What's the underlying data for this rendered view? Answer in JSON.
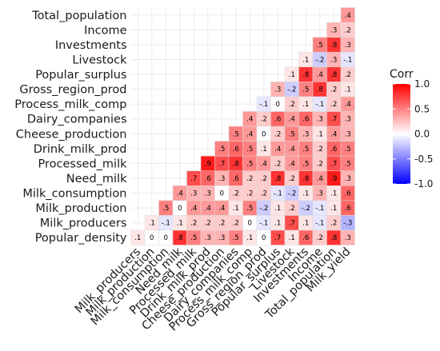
{
  "chart_data": {
    "type": "heatmap",
    "title": "",
    "xlabel": "",
    "ylabel": "",
    "x_variables": [
      "Milk_producers",
      "Milk_production",
      "Milk_consumption",
      "Need_milk",
      "Processed_milk",
      "Drink_milk_prod",
      "Cheese_production",
      "Dairy_companies",
      "Process_milk_comp",
      "Gross_region_prod",
      "Popular_surplus",
      "Livestock",
      "Investments",
      "Income",
      "Total_population",
      "Milk_yield"
    ],
    "y_variables": [
      "Popular_density",
      "Milk_producers",
      "Milk_production",
      "Milk_consumption",
      "Need_milk",
      "Processed_milk",
      "Drink_milk_prod",
      "Cheese_production",
      "Dairy_companies",
      "Process_milk_comp",
      "Gross_region_prod",
      "Popular_surplus",
      "Livestock",
      "Investments",
      "Income",
      "Total_population"
    ],
    "y_labels_display": [
      "Popular_density",
      "Milk_producers",
      "Milk_production",
      "Milk_consumption",
      "Need_milk",
      "Processed_milk",
      "Drink_milk_prod",
      "Cheese_production",
      "Dairy_companies",
      "Process_milk_comp",
      "Gross_region_prod",
      "Popular_surplus",
      "Livestock",
      "Investments",
      "Income",
      "Total_population"
    ],
    "x_labels_display": [
      "Milk_producers",
      "Milk_production",
      "Milk_consumption",
      "Need_milk",
      "Processed_milk",
      "Drink_milk_prod",
      "Cheese_production",
      "Dairy_companies",
      "Process_milk_comp",
      "Gross_region_prod",
      "Popular_surplus",
      "Livestock",
      "Investments",
      "Income",
      "Total_population",
      "Milk_yield"
    ],
    "rows": [
      [
        0.1,
        0,
        0,
        0.8,
        0.5,
        0.3,
        0.3,
        0.5,
        0.1,
        0,
        0.7,
        0.1,
        0.6,
        0.2,
        0.8,
        0.3
      ],
      [
        null,
        0.1,
        -0.1,
        0.1,
        0.2,
        0.2,
        0.2,
        0.2,
        0,
        -0.1,
        0.1,
        0.7,
        0.1,
        -0.1,
        0.2,
        -0.3
      ],
      [
        null,
        null,
        0.5,
        0,
        0.4,
        0.4,
        0.4,
        0.1,
        0.5,
        -0.2,
        0.1,
        0.2,
        -0.2,
        -0.1,
        0.1,
        0.6
      ],
      [
        null,
        null,
        null,
        0.4,
        0.3,
        0.3,
        0,
        0.2,
        0.2,
        0.2,
        -0.1,
        -0.2,
        0.1,
        0.3,
        0.1,
        0.6
      ],
      [
        null,
        null,
        null,
        null,
        0.7,
        0.6,
        0.3,
        0.6,
        0.2,
        0.2,
        0.8,
        0.2,
        0.8,
        0.4,
        0.9,
        0.3
      ],
      [
        null,
        null,
        null,
        null,
        null,
        0.9,
        0.7,
        0.8,
        0.5,
        0.4,
        0.2,
        0.4,
        0.5,
        0.2,
        0.7,
        0.5
      ],
      [
        null,
        null,
        null,
        null,
        null,
        null,
        0.5,
        0.6,
        0.5,
        0.1,
        0.4,
        0.4,
        0.5,
        0.2,
        0.6,
        0.5
      ],
      [
        null,
        null,
        null,
        null,
        null,
        null,
        null,
        0.5,
        0.4,
        0,
        0.2,
        0.5,
        0.3,
        0.1,
        0.4,
        0.3
      ],
      [
        null,
        null,
        null,
        null,
        null,
        null,
        null,
        null,
        0.4,
        0.2,
        0.6,
        0.4,
        0.6,
        0.3,
        0.7,
        0.3
      ],
      [
        null,
        null,
        null,
        null,
        null,
        null,
        null,
        null,
        null,
        -0.1,
        0,
        0.2,
        0.1,
        -0.1,
        0.2,
        0.4
      ],
      [
        null,
        null,
        null,
        null,
        null,
        null,
        null,
        null,
        null,
        null,
        0.3,
        -0.2,
        0.5,
        0.8,
        0.2,
        0.1
      ],
      [
        null,
        null,
        null,
        null,
        null,
        null,
        null,
        null,
        null,
        null,
        null,
        0.1,
        0.8,
        0.4,
        0.8,
        0.2
      ],
      [
        null,
        null,
        null,
        null,
        null,
        null,
        null,
        null,
        null,
        null,
        null,
        null,
        0.1,
        -0.2,
        0.3,
        -0.1
      ],
      [
        null,
        null,
        null,
        null,
        null,
        null,
        null,
        null,
        null,
        null,
        null,
        null,
        null,
        0.5,
        0.8,
        0.3
      ],
      [
        null,
        null,
        null,
        null,
        null,
        null,
        null,
        null,
        null,
        null,
        null,
        null,
        null,
        null,
        0.3,
        0.2
      ],
      [
        null,
        null,
        null,
        null,
        null,
        null,
        null,
        null,
        null,
        null,
        null,
        null,
        null,
        null,
        null,
        0.4
      ]
    ],
    "color_scale": {
      "low": "#0000ff",
      "mid": "#ffffff",
      "high": "#ff0000",
      "range": [
        -1,
        1
      ]
    },
    "legend": {
      "title": "Corr",
      "ticks": [
        {
          "value": 1.0,
          "label": "1.0"
        },
        {
          "value": 0.5,
          "label": "0.5"
        },
        {
          "value": 0.0,
          "label": "0.0"
        },
        {
          "value": -0.5,
          "label": "-0.5"
        },
        {
          "value": -1.0,
          "label": "-1.0"
        }
      ],
      "placement": "right"
    },
    "grid": true,
    "panel_background": "#ffffff",
    "grid_color": "#ebebeb"
  }
}
